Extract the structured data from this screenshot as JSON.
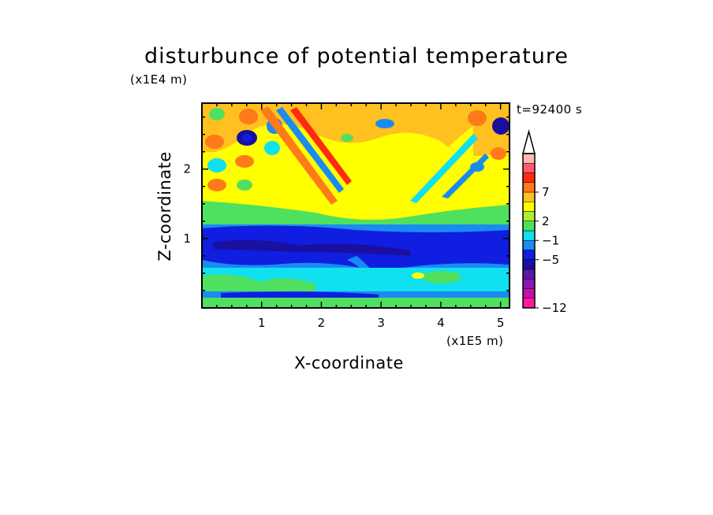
{
  "chart_data": {
    "type": "heatmap",
    "title": "disturbunce of potential temperature",
    "xlabel": "X-coordinate",
    "ylabel": "Z-coordinate",
    "x_unit": "(x1E5 m)",
    "y_unit": "(x1E4 m)",
    "time_label": "t=92400 s",
    "xlim": [
      0,
      5.15
    ],
    "ylim": [
      0,
      2.95
    ],
    "x_ticks": [
      "1",
      "2",
      "3",
      "4",
      "5"
    ],
    "y_ticks": [
      "1",
      "2"
    ],
    "colorbar": {
      "tick_labels": [
        "7",
        "2",
        "−1",
        "−5",
        "−12"
      ],
      "colors": [
        "#ff1a9c",
        "#c40fa8",
        "#8a17b0",
        "#5a16a8",
        "#1a0fa0",
        "#0f1ee0",
        "#1a8bf0",
        "#10e0f0",
        "#50e060",
        "#b0ee30",
        "#ffff00",
        "#ffc020",
        "#ff7a18",
        "#ff2a10",
        "#ff5a70",
        "#ffb6b6"
      ]
    }
  }
}
